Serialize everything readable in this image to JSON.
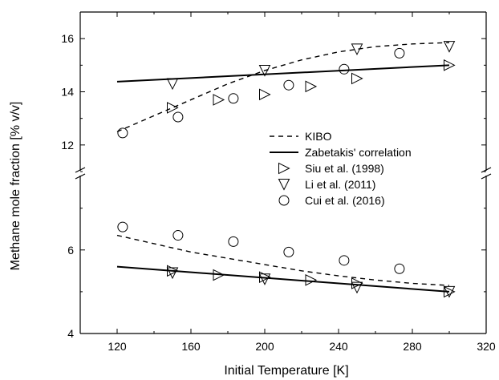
{
  "chart_data": {
    "type": "scatter",
    "xlabel": "Initial Temperature [K]",
    "ylabel": "Methane mole fraction [% v/v]",
    "xlim": [
      100,
      320
    ],
    "x_ticks": [
      120,
      160,
      200,
      240,
      280,
      320
    ],
    "broken_y_axis": true,
    "upper_panel": {
      "ylim": [
        11.0,
        17.0
      ],
      "y_ticks": [
        12,
        14,
        16
      ]
    },
    "lower_panel": {
      "ylim": [
        4.0,
        7.8
      ],
      "y_ticks": [
        4,
        6
      ]
    },
    "legend": {
      "position": "right-middle",
      "entries": [
        {
          "label": "KIBO",
          "marker": "dashed-line"
        },
        {
          "label": "Zabetakis' correlation",
          "marker": "solid-line"
        },
        {
          "label": "Siu et al. (1998)",
          "marker": "triangle-right"
        },
        {
          "label": "Li et al. (2011)",
          "marker": "triangle-down"
        },
        {
          "label": "Cui et al. (2016)",
          "marker": "circle"
        }
      ]
    },
    "series": [
      {
        "name": "KIBO",
        "style": "dashed-line",
        "upper": {
          "x": [
            120,
            140,
            160,
            180,
            200,
            220,
            240,
            260,
            280,
            300
          ],
          "y": [
            12.5,
            13.1,
            13.7,
            14.3,
            14.8,
            15.2,
            15.5,
            15.7,
            15.8,
            15.85
          ]
        },
        "lower": {
          "x": [
            120,
            140,
            160,
            180,
            200,
            220,
            240,
            260,
            280,
            300
          ],
          "y": [
            6.35,
            6.15,
            5.95,
            5.8,
            5.65,
            5.5,
            5.38,
            5.28,
            5.2,
            5.15
          ]
        }
      },
      {
        "name": "Zabetakis' correlation",
        "style": "solid-line",
        "upper": {
          "x": [
            120,
            300
          ],
          "y": [
            14.38,
            15.0
          ]
        },
        "lower": {
          "x": [
            120,
            300
          ],
          "y": [
            5.6,
            5.0
          ]
        }
      },
      {
        "name": "Siu et al. (1998)",
        "marker": "triangle-right",
        "upper": {
          "x": [
            150,
            175,
            200,
            225,
            250,
            300
          ],
          "y": [
            13.4,
            13.7,
            13.9,
            14.2,
            14.5,
            15.0
          ]
        },
        "lower": {
          "x": [
            150,
            175,
            200,
            225,
            250,
            300
          ],
          "y": [
            5.5,
            5.4,
            5.35,
            5.28,
            5.2,
            5.0
          ]
        }
      },
      {
        "name": "Li et al. (2011)",
        "marker": "triangle-down",
        "upper": {
          "x": [
            150,
            200,
            250,
            300
          ],
          "y": [
            14.3,
            14.8,
            15.6,
            15.7
          ]
        },
        "lower": {
          "x": [
            150,
            200,
            250,
            300
          ],
          "y": [
            5.45,
            5.3,
            5.1,
            5.0
          ]
        }
      },
      {
        "name": "Cui et al. (2016)",
        "marker": "circle",
        "upper": {
          "x": [
            123,
            153,
            183,
            213,
            243,
            273
          ],
          "y": [
            12.45,
            13.05,
            13.75,
            14.25,
            14.85,
            15.45
          ]
        },
        "lower": {
          "x": [
            123,
            153,
            183,
            213,
            243,
            273
          ],
          "y": [
            6.55,
            6.35,
            6.2,
            5.95,
            5.75,
            5.55
          ]
        }
      }
    ]
  }
}
